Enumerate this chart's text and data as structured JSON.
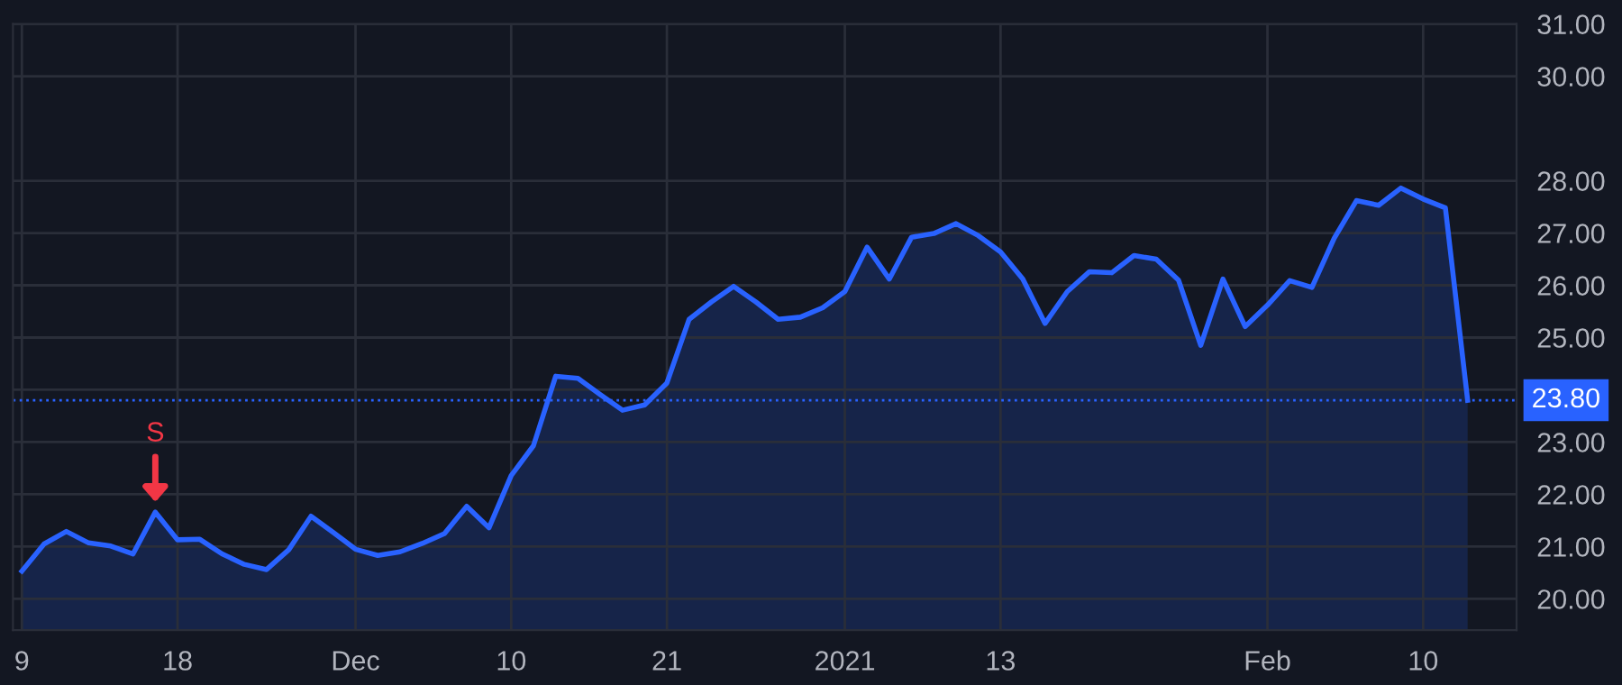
{
  "chart_data": {
    "type": "area",
    "categories": [
      "9",
      null,
      null,
      null,
      null,
      null,
      null,
      "18",
      null,
      null,
      null,
      null,
      null,
      null,
      null,
      "Dec",
      null,
      null,
      null,
      null,
      null,
      null,
      "10",
      null,
      null,
      null,
      null,
      null,
      null,
      "21",
      null,
      null,
      null,
      null,
      null,
      null,
      null,
      "2021",
      null,
      null,
      null,
      null,
      null,
      null,
      "13",
      null,
      null,
      null,
      null,
      null,
      null,
      null,
      null,
      null,
      null,
      null,
      "Feb",
      null,
      null,
      null,
      null,
      null,
      null,
      "10",
      null,
      null
    ],
    "series": [
      {
        "color": "#2962ff",
        "values": [
          20.53,
          21.05,
          21.29,
          21.07,
          21.01,
          20.86,
          21.66,
          21.13,
          21.14,
          20.86,
          20.66,
          20.56,
          20.94,
          21.58,
          21.27,
          20.95,
          20.83,
          20.9,
          21.06,
          21.25,
          21.77,
          21.36,
          22.36,
          22.93,
          24.26,
          24.22,
          23.91,
          23.61,
          23.71,
          24.13,
          25.35,
          25.68,
          25.98,
          25.68,
          25.35,
          25.39,
          25.57,
          25.88,
          26.73,
          26.12,
          26.92,
          26.99,
          27.18,
          26.95,
          26.64,
          26.12,
          25.27,
          25.88,
          26.26,
          26.24,
          26.57,
          26.5,
          26.1,
          24.85,
          26.12,
          25.21,
          25.62,
          26.09,
          25.96,
          26.9,
          27.62,
          27.53,
          27.86,
          27.65,
          27.48,
          23.8
        ]
      }
    ],
    "ylim": [
      19.4,
      31.0
    ],
    "yticks": [
      {
        "value": 20,
        "label": "20.00"
      },
      {
        "value": 21,
        "label": "21.00"
      },
      {
        "value": 22,
        "label": "22.00"
      },
      {
        "value": 23,
        "label": "23.00"
      },
      {
        "value": 24,
        "label": null
      },
      {
        "value": 25,
        "label": "25.00"
      },
      {
        "value": 26,
        "label": "26.00"
      },
      {
        "value": 27,
        "label": "27.00"
      },
      {
        "value": 28,
        "label": "28.00"
      },
      {
        "value": 30,
        "label": "30.00"
      },
      {
        "value": 31,
        "label": "31.00"
      }
    ],
    "ref_lines": [
      {
        "axis": "y",
        "value": 23.8,
        "label": "23.80",
        "color": "#2962ff",
        "line_style": "dotted"
      }
    ],
    "annotations": [
      {
        "text": "S",
        "y": 21.66
      }
    ],
    "grid": true,
    "legend": false,
    "marker": "none",
    "line_style": "solid"
  }
}
